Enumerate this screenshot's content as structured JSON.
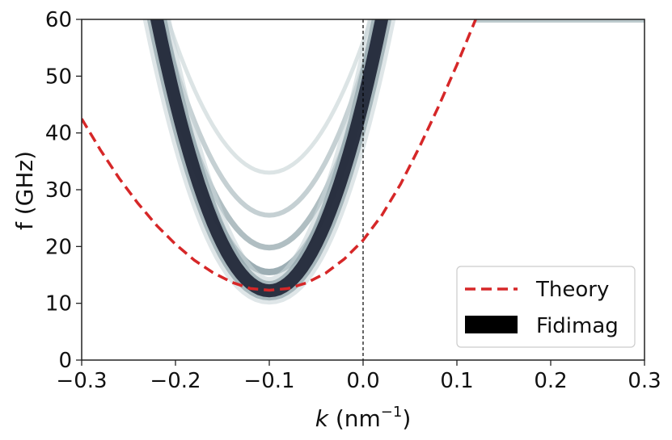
{
  "chart_data": {
    "type": "line",
    "title": "",
    "xlabel": {
      "italic": "k",
      "unit_prefix": " (nm",
      "unit_exponent": "−1",
      "unit_suffix": ")"
    },
    "ylabel": "f (GHz)",
    "xlim": [
      -0.3,
      0.3
    ],
    "ylim": [
      0,
      60
    ],
    "xticks": [
      -0.3,
      -0.2,
      -0.1,
      0.0,
      0.1,
      0.2,
      0.3
    ],
    "xtick_labels": [
      "−0.3",
      "−0.2",
      "−0.1",
      "0.0",
      "0.1",
      "0.2",
      "0.3"
    ],
    "yticks": [
      0,
      10,
      20,
      30,
      40,
      50,
      60
    ],
    "ytick_labels": [
      "0",
      "10",
      "20",
      "30",
      "40",
      "50",
      "60"
    ],
    "vline_x": 0.0,
    "legend_position": "lower-right",
    "series": [
      {
        "name": "Theory",
        "style": "dashed",
        "color": "#d62728",
        "x": [
          -0.3,
          -0.28,
          -0.26,
          -0.24,
          -0.22,
          -0.2,
          -0.18,
          -0.16,
          -0.14,
          -0.12,
          -0.1,
          -0.08,
          -0.06,
          -0.04,
          -0.02,
          0.0,
          0.02,
          0.04,
          0.06,
          0.08,
          0.1,
          0.12
        ],
        "y": [
          42.5,
          37.0,
          32.0,
          27.6,
          23.7,
          20.4,
          17.6,
          15.4,
          13.7,
          12.6,
          12.3,
          12.6,
          13.6,
          15.3,
          17.8,
          21.1,
          25.5,
          31.0,
          37.5,
          44.5,
          52.0,
          60.0
        ]
      },
      {
        "name": "Fidimag",
        "style": "filled",
        "color": "#000000",
        "modes": [
          {
            "min_x": -0.1,
            "min_f": 12.2,
            "curvature": 3330,
            "intensity": 1.0
          },
          {
            "min_x": -0.1,
            "min_f": 15.5,
            "curvature": 3000,
            "intensity": 0.55
          },
          {
            "min_x": -0.1,
            "min_f": 19.8,
            "curvature": 2800,
            "intensity": 0.45
          },
          {
            "min_x": -0.1,
            "min_f": 25.5,
            "curvature": 2600,
            "intensity": 0.32
          },
          {
            "min_x": -0.1,
            "min_f": 33.0,
            "curvature": 2300,
            "intensity": 0.18
          }
        ],
        "saturation_f": 60
      }
    ]
  }
}
